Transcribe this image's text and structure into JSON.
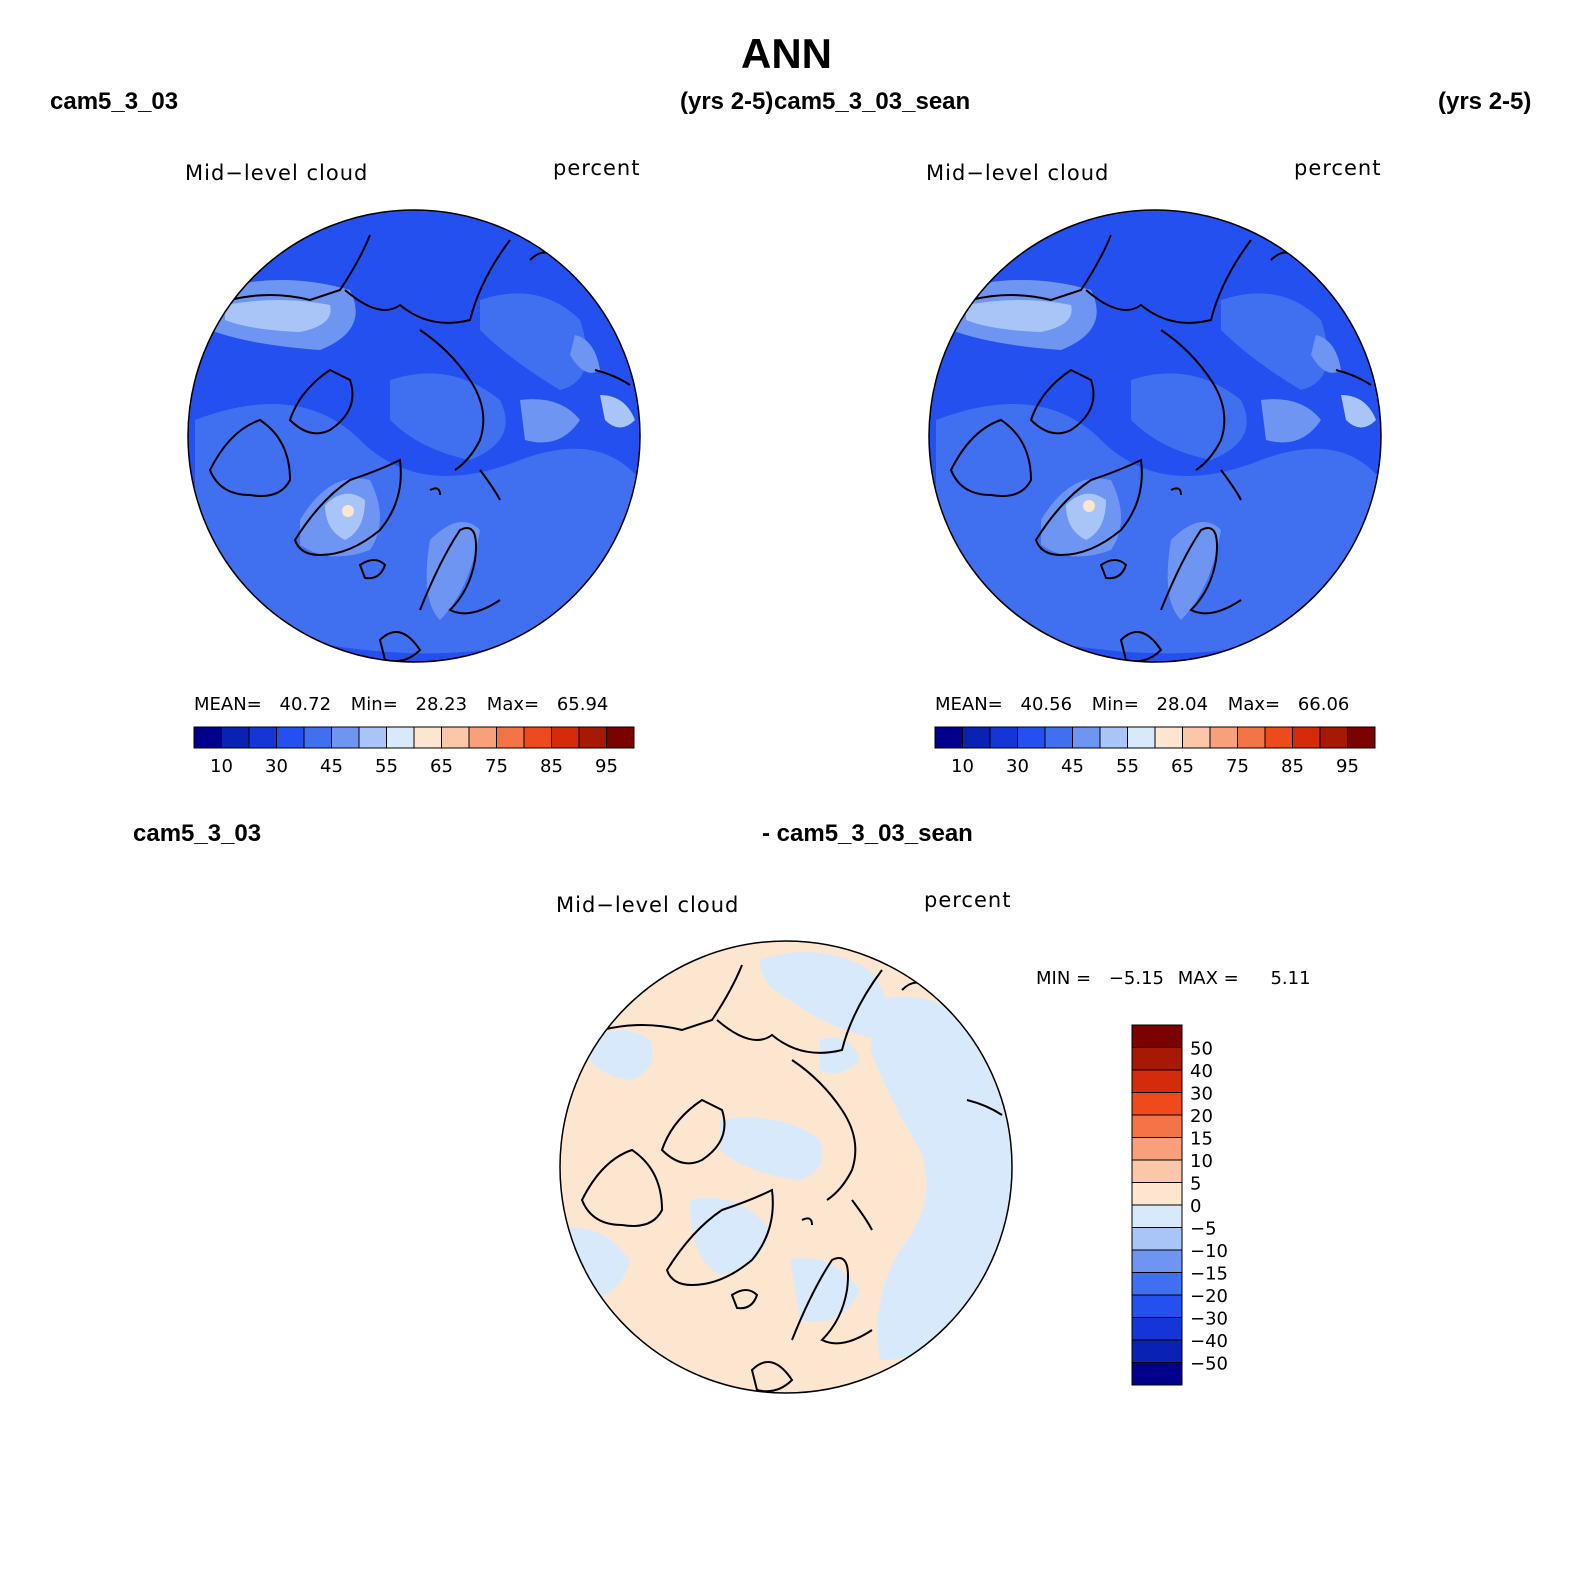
{
  "title": "ANN",
  "top_row": {
    "left_case": "cam5_3_03",
    "left_years": "(yrs 2-5)",
    "right_case": "cam5_3_03_sean",
    "right_years": "(yrs 2-5)"
  },
  "diff_header": {
    "left": "cam5_3_03",
    "right": "- cam5_3_03_sean"
  },
  "panels": [
    {
      "variable": "Mid−level cloud",
      "units": "percent",
      "stats": {
        "mean_label": "MEAN=",
        "mean": "40.72",
        "min_label": "Min=",
        "min": "28.23",
        "max_label": "Max=",
        "max": "65.94"
      }
    },
    {
      "variable": "Mid−level cloud",
      "units": "percent",
      "stats": {
        "mean_label": "MEAN=",
        "mean": "40.56",
        "min_label": "Min=",
        "min": "28.04",
        "max_label": "Max=",
        "max": "66.06"
      }
    }
  ],
  "diff_panel": {
    "variable": "Mid−level cloud",
    "units": "percent",
    "stats": {
      "min_label": "MIN =",
      "min": "−5.15",
      "max_label": "MAX =",
      "max": "5.11"
    }
  },
  "colorbar_main": {
    "colors": [
      "#00008c",
      "#0a22b4",
      "#1536d6",
      "#2350ee",
      "#4070f0",
      "#6e95f2",
      "#a9c5f7",
      "#d8e9fb",
      "#fde6d0",
      "#fcc7a8",
      "#f8a07c",
      "#f47448",
      "#ef4a1e",
      "#d42b0c",
      "#a81905",
      "#7a0300"
    ],
    "labels": [
      "10",
      "30",
      "45",
      "55",
      "65",
      "75",
      "85",
      "95"
    ]
  },
  "colorbar_diff": {
    "colors": [
      "#00008c",
      "#0a22b4",
      "#1536d6",
      "#2350ee",
      "#4070f0",
      "#6e95f2",
      "#a9c5f7",
      "#d8e9fb",
      "#fde6d0",
      "#fcc7a8",
      "#f8a07c",
      "#f47448",
      "#ef4a1e",
      "#d42b0c",
      "#a81905",
      "#7a0300"
    ],
    "labels": [
      "50",
      "40",
      "30",
      "20",
      "15",
      "10",
      "5",
      "0",
      "−5",
      "−10",
      "−15",
      "−20",
      "−30",
      "−40",
      "−50"
    ]
  }
}
